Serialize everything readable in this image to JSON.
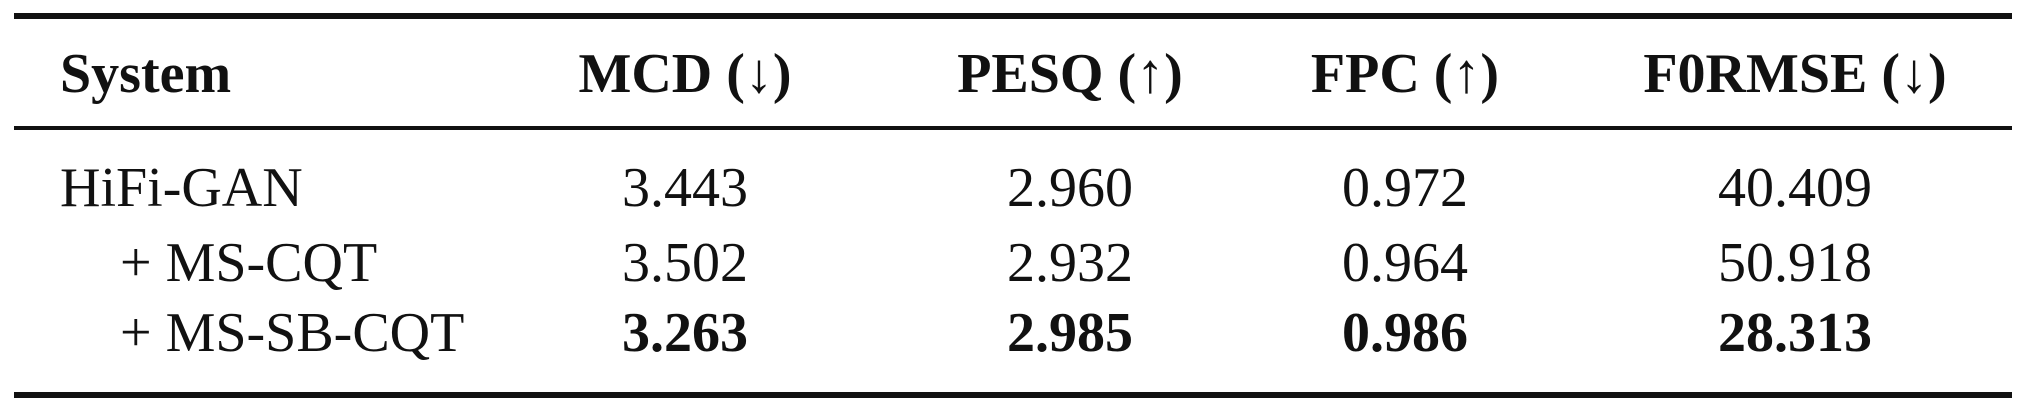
{
  "table": {
    "columns": [
      "System",
      "MCD (↓)",
      "PESQ (↑)",
      "FPC (↑)",
      "F0RMSE (↓)"
    ],
    "rows": [
      {
        "system": "HiFi-GAN",
        "values": [
          "3.443",
          "2.960",
          "0.972",
          "40.409"
        ],
        "bold": false
      },
      {
        "system": "+ MS-CQT",
        "values": [
          "3.502",
          "2.932",
          "0.964",
          "50.918"
        ],
        "bold": false
      },
      {
        "system": "+ MS-SB-CQT",
        "values": [
          "3.263",
          "2.985",
          "0.986",
          "28.313"
        ],
        "bold": true
      }
    ]
  }
}
